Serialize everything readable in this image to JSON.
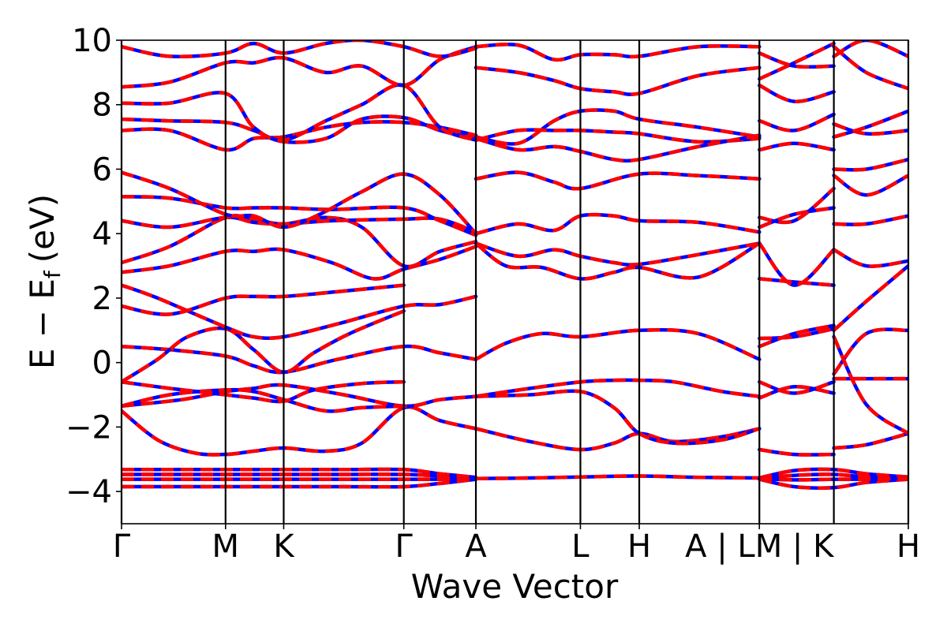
{
  "chart_data": {
    "type": "line",
    "title": "",
    "xlabel": "Wave Vector",
    "ylabel_parts": {
      "main": "E − E",
      "sub": "f",
      "unit": "(eV)"
    },
    "ylim": [
      -5,
      10
    ],
    "xlim": [
      0,
      6.55
    ],
    "yticks": [
      -4,
      -2,
      0,
      2,
      4,
      6,
      8,
      10
    ],
    "ytick_labels": [
      "−4",
      "−2",
      "0",
      "2",
      "4",
      "6",
      "8",
      "10"
    ],
    "kpoints": [
      {
        "label": "Γ",
        "x": 0.0
      },
      {
        "label": "M",
        "x": 0.866
      },
      {
        "label": "K",
        "x": 1.35
      },
      {
        "label": "Γ",
        "x": 2.35
      },
      {
        "label": "A",
        "x": 2.95
      },
      {
        "label": "L",
        "x": 3.82
      },
      {
        "label": "H",
        "x": 4.31
      },
      {
        "label": "A | LM | K",
        "x": 5.31
      },
      {
        "label": "H",
        "x": 6.55
      }
    ],
    "kpoint_lines": [
      0.0,
      0.866,
      1.35,
      2.35,
      2.95,
      3.82,
      4.31,
      5.31,
      5.93,
      6.55
    ],
    "colors": {
      "primary": "#ff0000",
      "secondary": "#0000ff"
    },
    "series": [
      {
        "x": [
          0,
          0.43,
          0.866,
          1.1,
          1.35,
          1.85,
          2.35,
          2.65,
          2.95
        ],
        "y": [
          -3.85,
          -3.85,
          -3.85,
          -3.85,
          -3.85,
          -3.85,
          -3.85,
          -3.75,
          -3.62
        ]
      },
      {
        "x": [
          0,
          0.43,
          0.866,
          1.1,
          1.35,
          1.85,
          2.35,
          2.65,
          2.95
        ],
        "y": [
          -3.62,
          -3.62,
          -3.62,
          -3.62,
          -3.62,
          -3.62,
          -3.62,
          -3.62,
          -3.6
        ]
      },
      {
        "x": [
          0,
          0.43,
          0.866,
          1.1,
          1.35,
          1.85,
          2.35,
          2.65,
          2.95
        ],
        "y": [
          -3.47,
          -3.47,
          -3.47,
          -3.47,
          -3.47,
          -3.47,
          -3.47,
          -3.52,
          -3.58
        ]
      },
      {
        "x": [
          0,
          0.43,
          0.866,
          1.1,
          1.35,
          1.85,
          2.35,
          2.65,
          2.95
        ],
        "y": [
          -3.32,
          -3.32,
          -3.32,
          -3.32,
          -3.32,
          -3.32,
          -3.32,
          -3.45,
          -3.56
        ]
      },
      {
        "x": [
          2.95,
          3.4,
          3.82,
          4.31,
          4.8,
          5.31
        ],
        "y": [
          -3.6,
          -3.58,
          -3.55,
          -3.52,
          -3.56,
          -3.58
        ]
      },
      {
        "x": [
          5.31,
          5.6,
          5.93,
          6.2,
          6.55
        ],
        "y": [
          -3.58,
          -3.35,
          -3.32,
          -3.45,
          -3.55
        ]
      },
      {
        "x": [
          5.31,
          5.6,
          5.93,
          6.2,
          6.55
        ],
        "y": [
          -3.62,
          -3.85,
          -3.88,
          -3.72,
          -3.62
        ]
      },
      {
        "x": [
          5.31,
          5.6,
          5.93,
          6.2,
          6.55
        ],
        "y": [
          -3.6,
          -3.5,
          -3.47,
          -3.55,
          -3.6
        ]
      },
      {
        "x": [
          5.31,
          5.6,
          5.93,
          6.2,
          6.55
        ],
        "y": [
          -3.6,
          -3.64,
          -3.62,
          -3.62,
          -3.6
        ]
      },
      {
        "x": [
          0,
          0.3,
          0.6,
          0.866,
          1.1,
          1.35,
          1.7,
          2.0,
          2.35,
          2.65,
          2.95
        ],
        "y": [
          -1.5,
          -2.4,
          -2.8,
          -2.85,
          -2.75,
          -2.65,
          -2.75,
          -2.5,
          -1.4,
          -1.8,
          -2.05
        ]
      },
      {
        "x": [
          2.95,
          3.4,
          3.82,
          4.1,
          4.31,
          4.6,
          5.0,
          5.31
        ],
        "y": [
          -2.05,
          -2.45,
          -2.7,
          -2.5,
          -2.2,
          -2.45,
          -2.3,
          -2.05
        ]
      },
      {
        "x": [
          2.95,
          3.4,
          3.82,
          4.1,
          4.31,
          4.6,
          5.0,
          5.31
        ],
        "y": [
          -1.05,
          -0.8,
          -0.6,
          -0.55,
          -0.55,
          -0.6,
          -0.9,
          -1.05
        ]
      },
      {
        "x": [
          2.95,
          3.4,
          3.82,
          4.1,
          4.31,
          4.6,
          5.0,
          5.31
        ],
        "y": [
          -1.05,
          -1.0,
          -0.9,
          -1.4,
          -2.2,
          -2.5,
          -2.4,
          -2.05
        ]
      },
      {
        "x": [
          0,
          0.5,
          0.866,
          1.1,
          1.35,
          1.85,
          2.35,
          2.65,
          2.95
        ],
        "y": [
          -1.35,
          -1.15,
          -0.9,
          -0.8,
          -0.7,
          -1.0,
          -1.35,
          -1.15,
          -1.05
        ]
      },
      {
        "x": [
          0,
          0.4,
          0.866,
          1.1,
          1.35,
          1.7,
          2.0,
          2.35
        ],
        "y": [
          -1.35,
          -1.0,
          -0.85,
          -0.9,
          -1.15,
          -1.5,
          -1.4,
          -1.35
        ]
      },
      {
        "x": [
          0,
          0.4,
          0.866,
          1.1,
          1.35,
          1.6,
          2.0,
          2.35
        ],
        "y": [
          -0.6,
          -0.8,
          -1.0,
          -1.1,
          -1.2,
          -0.85,
          -0.65,
          -0.6
        ]
      },
      {
        "x": [
          0,
          0.4,
          0.866,
          1.1,
          1.35,
          1.8,
          2.35,
          2.65,
          2.95
        ],
        "y": [
          0.5,
          0.4,
          0.2,
          -0.1,
          -0.3,
          0.1,
          0.5,
          0.3,
          0.1
        ]
      },
      {
        "x": [
          2.95,
          3.2,
          3.5,
          3.82,
          4.31,
          4.8,
          5.31
        ],
        "y": [
          0.1,
          0.6,
          0.9,
          0.8,
          1.0,
          0.9,
          0.1
        ]
      },
      {
        "x": [
          0,
          0.3,
          0.55,
          0.866,
          1.1,
          1.35,
          1.6,
          1.9,
          2.35
        ],
        "y": [
          -0.6,
          0.1,
          0.8,
          1.05,
          0.4,
          -0.3,
          0.3,
          0.9,
          1.6
        ]
      },
      {
        "x": [
          0,
          0.3,
          0.866,
          1.1,
          1.35,
          1.8,
          2.35,
          2.65,
          2.95
        ],
        "y": [
          2.4,
          2.0,
          1.1,
          0.8,
          0.8,
          1.2,
          1.75,
          1.8,
          2.05
        ]
      },
      {
        "x": [
          0,
          0.4,
          0.866,
          1.1,
          1.35,
          1.8,
          2.35
        ],
        "y": [
          1.75,
          1.5,
          2.0,
          2.05,
          2.05,
          2.2,
          2.4
        ]
      },
      {
        "x": [
          0,
          0.4,
          0.866,
          1.1,
          1.35,
          1.75,
          2.1,
          2.35,
          2.65,
          2.95
        ],
        "y": [
          2.8,
          3.0,
          3.45,
          3.45,
          3.5,
          3.1,
          2.6,
          2.9,
          3.2,
          3.6
        ]
      },
      {
        "x": [
          0,
          0.4,
          0.866,
          1.1,
          1.35,
          1.7,
          2.0,
          2.35,
          2.65,
          2.95
        ],
        "y": [
          3.1,
          3.6,
          4.5,
          4.45,
          4.3,
          4.5,
          4.2,
          3.0,
          3.45,
          3.75
        ]
      },
      {
        "x": [
          0,
          0.4,
          0.866,
          1.1,
          1.35,
          1.75,
          2.35,
          2.65,
          2.95
        ],
        "y": [
          4.4,
          4.2,
          4.5,
          4.35,
          4.3,
          4.4,
          4.45,
          4.45,
          4.05
        ]
      },
      {
        "x": [
          0,
          0.4,
          0.866,
          1.1,
          1.35,
          1.75,
          2.35,
          2.65,
          2.95
        ],
        "y": [
          5.15,
          5.1,
          4.8,
          4.8,
          4.8,
          4.75,
          4.8,
          4.4,
          3.95
        ]
      },
      {
        "x": [
          0,
          0.4,
          0.866,
          1.1,
          1.35,
          1.65,
          2.0,
          2.35,
          2.65,
          2.95
        ],
        "y": [
          5.9,
          5.4,
          4.6,
          4.55,
          4.2,
          4.6,
          5.3,
          5.85,
          5.2,
          4.0
        ]
      },
      {
        "x": [
          2.95,
          3.3,
          3.6,
          3.82,
          4.1,
          4.31,
          4.8,
          5.31
        ],
        "y": [
          4.0,
          4.3,
          4.1,
          4.55,
          4.55,
          4.4,
          4.35,
          4.05
        ]
      },
      {
        "x": [
          2.95,
          3.3,
          3.6,
          3.82,
          4.1,
          4.31,
          4.8,
          5.31
        ],
        "y": [
          3.7,
          3.3,
          3.5,
          3.3,
          3.1,
          3.05,
          3.35,
          3.7
        ]
      },
      {
        "x": [
          2.95,
          3.2,
          3.5,
          3.82,
          4.1,
          4.31,
          4.8,
          5.31
        ],
        "y": [
          3.7,
          3.0,
          2.95,
          2.6,
          2.8,
          2.95,
          2.65,
          3.7
        ]
      },
      {
        "x": [
          2.95,
          3.3,
          3.6,
          3.82,
          4.31,
          4.8,
          5.31
        ],
        "y": [
          5.7,
          5.9,
          5.6,
          5.4,
          5.85,
          5.8,
          5.7
        ]
      },
      {
        "x": [
          0,
          0.4,
          0.866,
          1.1,
          1.35,
          1.7,
          2.0,
          2.35,
          2.65,
          2.95
        ],
        "y": [
          7.2,
          7.2,
          6.6,
          6.95,
          7.0,
          7.3,
          7.45,
          7.45,
          7.3,
          7.05
        ]
      },
      {
        "x": [
          0,
          0.4,
          0.866,
          1.1,
          1.35,
          1.7,
          2.0,
          2.35,
          2.65,
          2.95
        ],
        "y": [
          7.55,
          7.5,
          7.45,
          7.2,
          6.85,
          6.95,
          7.55,
          7.6,
          7.2,
          6.95
        ]
      },
      {
        "x": [
          0,
          0.4,
          0.866,
          1.1,
          1.35,
          1.7,
          2.0,
          2.35,
          2.65,
          2.95
        ],
        "y": [
          8.05,
          8.05,
          8.35,
          7.3,
          6.9,
          7.5,
          8.0,
          8.6,
          7.3,
          6.9
        ]
      },
      {
        "x": [
          2.95,
          3.3,
          3.6,
          3.82,
          4.1,
          4.31,
          4.8,
          5.31
        ],
        "y": [
          7.0,
          6.8,
          7.5,
          7.8,
          7.8,
          7.55,
          7.3,
          7.0
        ]
      },
      {
        "x": [
          2.95,
          3.3,
          3.6,
          3.82,
          4.1,
          4.31,
          4.8,
          5.31
        ],
        "y": [
          6.9,
          7.2,
          7.2,
          7.2,
          7.15,
          7.1,
          6.85,
          6.95
        ]
      },
      {
        "x": [
          2.95,
          3.3,
          3.6,
          3.82,
          4.1,
          4.31,
          4.8,
          5.31
        ],
        "y": [
          6.95,
          6.6,
          6.7,
          6.55,
          6.3,
          6.3,
          6.7,
          7.05
        ]
      },
      {
        "x": [
          0,
          0.4,
          0.866,
          1.1,
          1.35,
          1.7,
          2.0,
          2.35,
          2.65,
          2.95
        ],
        "y": [
          8.55,
          8.7,
          9.3,
          9.3,
          9.45,
          9.0,
          9.2,
          8.6,
          9.4,
          9.8
        ]
      },
      {
        "x": [
          0,
          0.4,
          0.866,
          1.1,
          1.35,
          1.7,
          2.0,
          2.35,
          2.65,
          2.95
        ],
        "y": [
          9.8,
          9.5,
          9.6,
          9.9,
          9.6,
          9.9,
          10.0,
          9.8,
          9.5,
          9.75
        ]
      },
      {
        "x": [
          2.95,
          3.3,
          3.6,
          3.82,
          4.1,
          4.31,
          4.8,
          5.31
        ],
        "y": [
          9.15,
          9.0,
          8.75,
          8.5,
          8.4,
          8.35,
          8.9,
          9.15
        ]
      },
      {
        "x": [
          2.95,
          3.3,
          3.6,
          3.82,
          4.1,
          4.31,
          4.8,
          5.31
        ],
        "y": [
          9.8,
          9.85,
          9.4,
          9.55,
          9.55,
          9.5,
          9.8,
          9.8
        ]
      },
      {
        "x": [
          5.31,
          5.6,
          5.93
        ],
        "y": [
          -2.7,
          -2.85,
          -2.85
        ]
      },
      {
        "x": [
          5.31,
          5.6,
          5.93
        ],
        "y": [
          -1.1,
          -0.75,
          -0.95
        ]
      },
      {
        "x": [
          5.31,
          5.6,
          5.93
        ],
        "y": [
          -0.6,
          -0.95,
          -0.6
        ]
      },
      {
        "x": [
          5.31,
          5.6,
          5.93
        ],
        "y": [
          0.75,
          0.8,
          1.05
        ]
      },
      {
        "x": [
          5.31,
          5.6,
          5.93
        ],
        "y": [
          0.5,
          0.9,
          1.15
        ]
      },
      {
        "x": [
          5.31,
          5.6,
          5.93
        ],
        "y": [
          2.6,
          2.5,
          2.4
        ]
      },
      {
        "x": [
          5.31,
          5.6,
          5.93
        ],
        "y": [
          3.7,
          2.4,
          3.5
        ]
      },
      {
        "x": [
          5.31,
          5.6,
          5.93
        ],
        "y": [
          4.2,
          4.6,
          4.8
        ]
      },
      {
        "x": [
          5.31,
          5.6,
          5.93
        ],
        "y": [
          4.5,
          4.4,
          5.4
        ]
      },
      {
        "x": [
          5.31,
          5.6,
          5.93
        ],
        "y": [
          6.6,
          6.8,
          6.6
        ]
      },
      {
        "x": [
          5.31,
          5.6,
          5.93
        ],
        "y": [
          7.5,
          7.2,
          7.7
        ]
      },
      {
        "x": [
          5.31,
          5.6,
          5.93
        ],
        "y": [
          8.6,
          8.1,
          8.4
        ]
      },
      {
        "x": [
          5.31,
          5.6,
          5.93
        ],
        "y": [
          8.8,
          9.3,
          9.9
        ]
      },
      {
        "x": [
          5.31,
          5.6,
          5.93
        ],
        "y": [
          9.6,
          9.2,
          9.2
        ]
      },
      {
        "x": [
          5.93,
          6.2,
          6.55
        ],
        "y": [
          -2.65,
          -2.55,
          -2.2
        ]
      },
      {
        "x": [
          5.93,
          6.2,
          6.55
        ],
        "y": [
          -0.5,
          -0.5,
          -0.5
        ]
      },
      {
        "x": [
          5.93,
          6.2,
          6.55
        ],
        "y": [
          -0.35,
          0.9,
          1.0
        ]
      },
      {
        "x": [
          5.93,
          6.2,
          6.55
        ],
        "y": [
          0.8,
          -1.3,
          -2.2
        ]
      },
      {
        "x": [
          5.93,
          6.2,
          6.55
        ],
        "y": [
          1.0,
          1.9,
          3.0
        ]
      },
      {
        "x": [
          5.93,
          6.2,
          6.55
        ],
        "y": [
          4.3,
          4.3,
          4.55
        ]
      },
      {
        "x": [
          5.93,
          6.2,
          6.55
        ],
        "y": [
          3.5,
          3.0,
          3.15
        ]
      },
      {
        "x": [
          5.93,
          6.2,
          6.55
        ],
        "y": [
          6.0,
          6.0,
          6.3
        ]
      },
      {
        "x": [
          5.93,
          6.2,
          6.55
        ],
        "y": [
          5.8,
          5.2,
          5.8
        ]
      },
      {
        "x": [
          5.93,
          6.2,
          6.55
        ],
        "y": [
          7.4,
          7.1,
          7.2
        ]
      },
      {
        "x": [
          5.93,
          6.2,
          6.55
        ],
        "y": [
          7.0,
          7.3,
          7.8
        ]
      },
      {
        "x": [
          5.93,
          6.2,
          6.55
        ],
        "y": [
          9.8,
          9.0,
          8.5
        ]
      },
      {
        "x": [
          5.93,
          6.2,
          6.55
        ],
        "y": [
          9.5,
          10.0,
          9.5
        ]
      }
    ]
  }
}
